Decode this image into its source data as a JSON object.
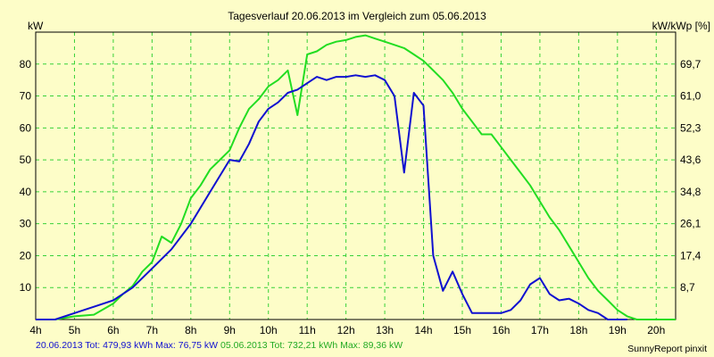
{
  "colors": {
    "background": "#fdfdc8",
    "grid": "#37d137",
    "series_blue": "#1010d0",
    "series_green": "#22dd22"
  },
  "chart_data": {
    "type": "line",
    "title": "Tagesverlauf 20.06.2013 im Vergleich zum 05.06.2013",
    "ylabel": "kW",
    "y2label": "kW/kWp [%]",
    "xlim": [
      4,
      20.5
    ],
    "ylim": [
      0,
      90
    ],
    "x_ticks": [
      "4h",
      "5h",
      "6h",
      "7h",
      "8h",
      "9h",
      "10h",
      "11h",
      "12h",
      "13h",
      "14h",
      "15h",
      "16h",
      "17h",
      "18h",
      "19h",
      "20h"
    ],
    "y_ticks": [
      10,
      20,
      30,
      40,
      50,
      60,
      70,
      80
    ],
    "y2_ticks": [
      "8,7",
      "17,4",
      "26,1",
      "34,8",
      "43,6",
      "52,3",
      "61,0",
      "69,7"
    ],
    "grid": true,
    "series": [
      {
        "name": "20.06.2013",
        "color": "#1010d0",
        "points": [
          [
            4.0,
            0
          ],
          [
            4.5,
            0
          ],
          [
            5.0,
            2
          ],
          [
            5.5,
            4
          ],
          [
            6.0,
            6
          ],
          [
            6.5,
            10
          ],
          [
            7.0,
            16
          ],
          [
            7.5,
            22
          ],
          [
            8.0,
            30
          ],
          [
            8.5,
            40
          ],
          [
            8.8,
            46
          ],
          [
            9.0,
            50
          ],
          [
            9.25,
            49.5
          ],
          [
            9.5,
            55
          ],
          [
            9.75,
            62
          ],
          [
            10.0,
            66
          ],
          [
            10.25,
            68
          ],
          [
            10.5,
            71
          ],
          [
            10.75,
            72
          ],
          [
            11.0,
            74
          ],
          [
            11.25,
            76
          ],
          [
            11.5,
            75
          ],
          [
            11.75,
            76
          ],
          [
            12.0,
            76
          ],
          [
            12.25,
            76.5
          ],
          [
            12.5,
            76
          ],
          [
            12.75,
            76.5
          ],
          [
            13.0,
            75
          ],
          [
            13.25,
            70
          ],
          [
            13.5,
            46
          ],
          [
            13.75,
            71
          ],
          [
            14.0,
            67
          ],
          [
            14.25,
            20
          ],
          [
            14.5,
            9
          ],
          [
            14.75,
            15
          ],
          [
            15.0,
            8
          ],
          [
            15.25,
            2
          ],
          [
            15.5,
            2
          ],
          [
            15.75,
            2
          ],
          [
            16.0,
            2
          ],
          [
            16.25,
            3
          ],
          [
            16.5,
            6
          ],
          [
            16.75,
            11
          ],
          [
            17.0,
            13
          ],
          [
            17.25,
            8
          ],
          [
            17.5,
            6
          ],
          [
            17.75,
            6.5
          ],
          [
            18.0,
            5
          ],
          [
            18.25,
            3
          ],
          [
            18.5,
            2
          ],
          [
            18.75,
            0
          ],
          [
            19.0,
            0
          ],
          [
            19.25,
            0
          ]
        ]
      },
      {
        "name": "05.06.2013",
        "color": "#22dd22",
        "points": [
          [
            4.5,
            0
          ],
          [
            5.0,
            1
          ],
          [
            5.5,
            1.5
          ],
          [
            6.0,
            5
          ],
          [
            6.25,
            8
          ],
          [
            6.5,
            10.5
          ],
          [
            6.75,
            15
          ],
          [
            7.0,
            18
          ],
          [
            7.25,
            26
          ],
          [
            7.5,
            24
          ],
          [
            7.75,
            30
          ],
          [
            8.0,
            38
          ],
          [
            8.25,
            42
          ],
          [
            8.5,
            47
          ],
          [
            8.75,
            50
          ],
          [
            9.0,
            53
          ],
          [
            9.25,
            60
          ],
          [
            9.5,
            66
          ],
          [
            9.75,
            69
          ],
          [
            10.0,
            73
          ],
          [
            10.25,
            75
          ],
          [
            10.5,
            78
          ],
          [
            10.75,
            64
          ],
          [
            11.0,
            83
          ],
          [
            11.25,
            84
          ],
          [
            11.5,
            86
          ],
          [
            11.75,
            87
          ],
          [
            12.0,
            87.5
          ],
          [
            12.25,
            88.5
          ],
          [
            12.5,
            89
          ],
          [
            12.75,
            88
          ],
          [
            13.0,
            87
          ],
          [
            13.25,
            86
          ],
          [
            13.5,
            85
          ],
          [
            13.75,
            83
          ],
          [
            14.0,
            81
          ],
          [
            14.25,
            78
          ],
          [
            14.5,
            75
          ],
          [
            14.75,
            71
          ],
          [
            15.0,
            66
          ],
          [
            15.25,
            62
          ],
          [
            15.5,
            58
          ],
          [
            15.75,
            58
          ],
          [
            16.0,
            54
          ],
          [
            16.25,
            50
          ],
          [
            16.5,
            46
          ],
          [
            16.75,
            42
          ],
          [
            17.0,
            37
          ],
          [
            17.25,
            32
          ],
          [
            17.5,
            28
          ],
          [
            17.75,
            23
          ],
          [
            18.0,
            18
          ],
          [
            18.25,
            13
          ],
          [
            18.5,
            9
          ],
          [
            18.75,
            6
          ],
          [
            19.0,
            3
          ],
          [
            19.25,
            1
          ],
          [
            19.5,
            0
          ],
          [
            20.5,
            0
          ]
        ]
      }
    ]
  },
  "footer": {
    "blue_text": "20.06.2013 Tot: 479,93 kWh Max: 76,75 kW",
    "green_text": "05.06.2013 Tot: 732,21 kWh Max: 89,36 kW",
    "credit": "SunnyReport pinxit"
  }
}
